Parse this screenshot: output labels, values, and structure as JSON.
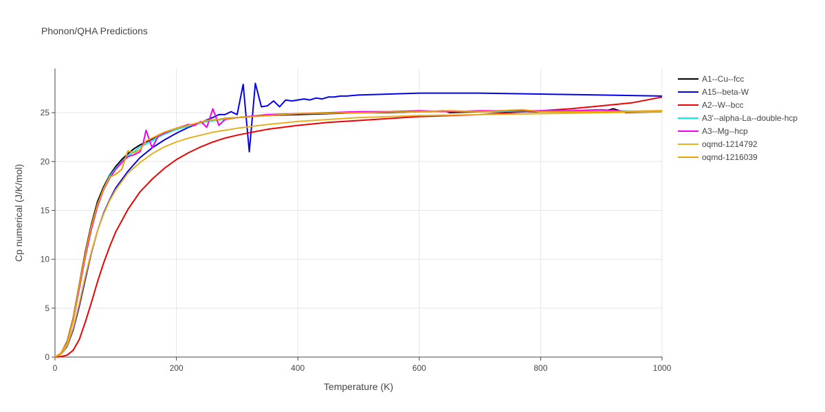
{
  "chart_data": {
    "type": "line",
    "title": "Phonon/QHA Predictions",
    "xlabel": "Temperature (K)",
    "ylabel": "Cp numerical (J/K/mol)",
    "xlim": [
      0,
      1000
    ],
    "ylim": [
      0,
      29.5
    ],
    "xticks": [
      0,
      200,
      400,
      600,
      800,
      1000
    ],
    "yticks": [
      0,
      5,
      10,
      15,
      20,
      25
    ],
    "grid": true,
    "legend_position": "top-right",
    "series": [
      {
        "name": "A1--Cu--fcc",
        "color": "#000000",
        "x": [
          0,
          10,
          20,
          30,
          40,
          50,
          60,
          70,
          80,
          90,
          100,
          110,
          120,
          130,
          140,
          150,
          160,
          170,
          180,
          190,
          200,
          220,
          240,
          260,
          280,
          300,
          350,
          400,
          450,
          500,
          550,
          600,
          620,
          640,
          650,
          700,
          750,
          800,
          850,
          900,
          920,
          940,
          1000
        ],
        "y": [
          0,
          0.4,
          1.6,
          4.0,
          7.4,
          10.8,
          13.6,
          15.9,
          17.4,
          18.6,
          19.5,
          20.2,
          20.8,
          21.3,
          21.7,
          22.0,
          22.3,
          22.7,
          22.9,
          23.1,
          23.3,
          23.7,
          24.0,
          24.2,
          24.4,
          24.5,
          24.7,
          24.8,
          24.9,
          25.0,
          25.0,
          25.1,
          25.1,
          25.2,
          25.0,
          25.1,
          25.1,
          25.1,
          25.1,
          25.1,
          25.4,
          25.0,
          25.1
        ]
      },
      {
        "name": "A15--beta-W",
        "color": "#0000ee",
        "x": [
          0,
          10,
          20,
          30,
          40,
          50,
          60,
          70,
          80,
          90,
          100,
          120,
          140,
          160,
          180,
          200,
          220,
          240,
          260,
          270,
          280,
          290,
          300,
          310,
          320,
          330,
          340,
          350,
          360,
          370,
          380,
          390,
          400,
          410,
          420,
          430,
          440,
          450,
          460,
          470,
          480,
          500,
          600,
          620,
          700,
          800,
          900,
          1000
        ],
        "y": [
          0,
          0.3,
          1.1,
          2.8,
          5.2,
          8.0,
          10.7,
          12.9,
          14.7,
          16.1,
          17.3,
          19.0,
          20.4,
          21.4,
          22.2,
          22.9,
          23.5,
          24.0,
          24.5,
          24.8,
          24.8,
          25.1,
          24.8,
          27.9,
          21.0,
          28.0,
          25.6,
          25.7,
          26.2,
          25.6,
          26.3,
          26.2,
          26.3,
          26.4,
          26.3,
          26.5,
          26.4,
          26.6,
          26.6,
          26.7,
          26.7,
          26.8,
          27.0,
          27.0,
          27.0,
          26.9,
          26.8,
          26.7
        ]
      },
      {
        "name": "A2--W--bcc",
        "color": "#ee0000",
        "x": [
          0,
          10,
          20,
          30,
          40,
          50,
          60,
          70,
          80,
          90,
          100,
          120,
          140,
          160,
          180,
          200,
          220,
          240,
          260,
          280,
          300,
          350,
          400,
          450,
          500,
          600,
          700,
          800,
          850,
          900,
          950,
          1000
        ],
        "y": [
          0,
          0.05,
          0.2,
          0.7,
          1.8,
          3.6,
          5.6,
          7.7,
          9.6,
          11.3,
          12.8,
          15.1,
          16.9,
          18.2,
          19.3,
          20.2,
          20.9,
          21.5,
          22.0,
          22.4,
          22.7,
          23.3,
          23.7,
          24.0,
          24.2,
          24.6,
          24.8,
          25.2,
          25.4,
          25.7,
          26.0,
          26.6
        ]
      },
      {
        "name": "A3'--alpha-La--double-hcp",
        "color": "#00eeee",
        "x": [
          0,
          10,
          20,
          30,
          40,
          50,
          60,
          70,
          80,
          90,
          100,
          110,
          120,
          130,
          140,
          150,
          160,
          170,
          180,
          200,
          250,
          300,
          400,
          500,
          600,
          700,
          800,
          900,
          1000
        ],
        "y": [
          0,
          0.4,
          1.5,
          3.8,
          7.1,
          10.5,
          13.3,
          15.6,
          17.2,
          18.5,
          19.3,
          20.0,
          20.6,
          21.0,
          21.5,
          21.8,
          22.1,
          22.5,
          22.8,
          23.3,
          24.1,
          24.5,
          24.9,
          25.0,
          25.1,
          25.1,
          25.2,
          25.2,
          25.1
        ]
      },
      {
        "name": "A3--Mg--hcp",
        "color": "#ee00ee",
        "x": [
          0,
          10,
          20,
          30,
          40,
          50,
          60,
          70,
          80,
          90,
          100,
          110,
          120,
          130,
          140,
          145,
          150,
          160,
          170,
          180,
          200,
          220,
          230,
          240,
          250,
          260,
          270,
          280,
          300,
          350,
          400,
          450,
          500,
          550,
          600,
          650,
          700,
          750,
          800,
          850,
          900,
          950,
          1000
        ],
        "y": [
          0,
          0.4,
          1.5,
          3.8,
          7.0,
          10.3,
          13.1,
          15.4,
          17.1,
          18.3,
          19.2,
          19.9,
          20.5,
          20.7,
          21.0,
          21.8,
          23.2,
          21.4,
          22.6,
          22.9,
          23.4,
          23.8,
          23.7,
          24.1,
          23.5,
          25.4,
          23.7,
          24.3,
          24.5,
          24.8,
          24.9,
          25.0,
          25.1,
          25.1,
          25.2,
          25.1,
          25.2,
          25.2,
          25.2,
          25.2,
          25.3,
          25.1,
          25.1
        ]
      },
      {
        "name": "oqmd-1214792",
        "color": "#e6b020",
        "x": [
          0,
          10,
          20,
          30,
          40,
          50,
          60,
          70,
          80,
          90,
          100,
          120,
          140,
          160,
          180,
          200,
          220,
          240,
          260,
          280,
          300,
          350,
          400,
          450,
          500,
          600,
          700,
          800,
          900,
          1000
        ],
        "y": [
          0,
          0.3,
          1.2,
          3.0,
          5.5,
          8.3,
          10.8,
          12.9,
          14.6,
          16.0,
          17.1,
          18.8,
          19.9,
          20.8,
          21.5,
          22.0,
          22.4,
          22.7,
          23.0,
          23.2,
          23.4,
          23.8,
          24.1,
          24.3,
          24.5,
          24.7,
          24.8,
          24.9,
          25.0,
          25.1
        ]
      },
      {
        "name": "oqmd-1216039",
        "color": "#f0a000",
        "x": [
          0,
          10,
          20,
          30,
          40,
          50,
          60,
          70,
          80,
          90,
          100,
          110,
          120,
          130,
          140,
          150,
          160,
          170,
          180,
          200,
          250,
          300,
          400,
          500,
          600,
          650,
          700,
          770,
          800,
          900,
          1000
        ],
        "y": [
          0,
          0.4,
          1.5,
          3.9,
          7.3,
          10.6,
          13.4,
          15.6,
          17.2,
          18.4,
          18.7,
          19.2,
          21.1,
          20.9,
          21.2,
          22.1,
          22.4,
          22.7,
          23.0,
          23.4,
          24.2,
          24.5,
          24.9,
          25.0,
          25.1,
          25.2,
          25.1,
          25.3,
          25.1,
          25.1,
          25.2
        ]
      }
    ]
  }
}
